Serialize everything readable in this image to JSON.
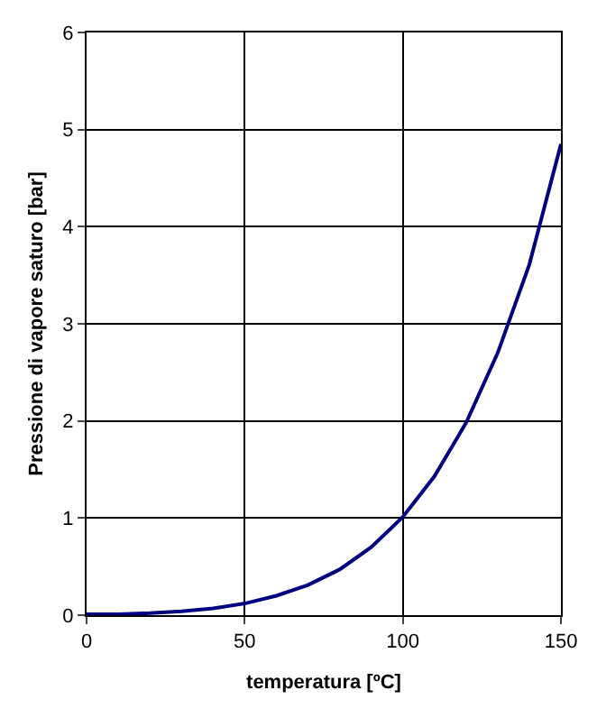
{
  "chart_data": {
    "type": "line",
    "xlabel": "temperatura [ºC]",
    "ylabel": "Pressione di vapore saturo [bar]",
    "x": [
      0,
      10,
      20,
      30,
      40,
      50,
      60,
      70,
      80,
      90,
      100,
      110,
      120,
      130,
      140,
      150
    ],
    "series": [
      {
        "color": "#000080",
        "values": [
          0.01,
          0.01,
          0.02,
          0.04,
          0.07,
          0.12,
          0.2,
          0.31,
          0.47,
          0.7,
          1.01,
          1.43,
          1.98,
          2.7,
          3.61,
          4.85
        ]
      }
    ],
    "xlim": [
      0,
      150
    ],
    "xticks": [
      0,
      50,
      100,
      150
    ],
    "ylim": [
      0,
      6
    ],
    "yticks": [
      0,
      1,
      2,
      3,
      4,
      5,
      6
    ],
    "grid": true,
    "marker": "none",
    "line_style": "solid"
  }
}
